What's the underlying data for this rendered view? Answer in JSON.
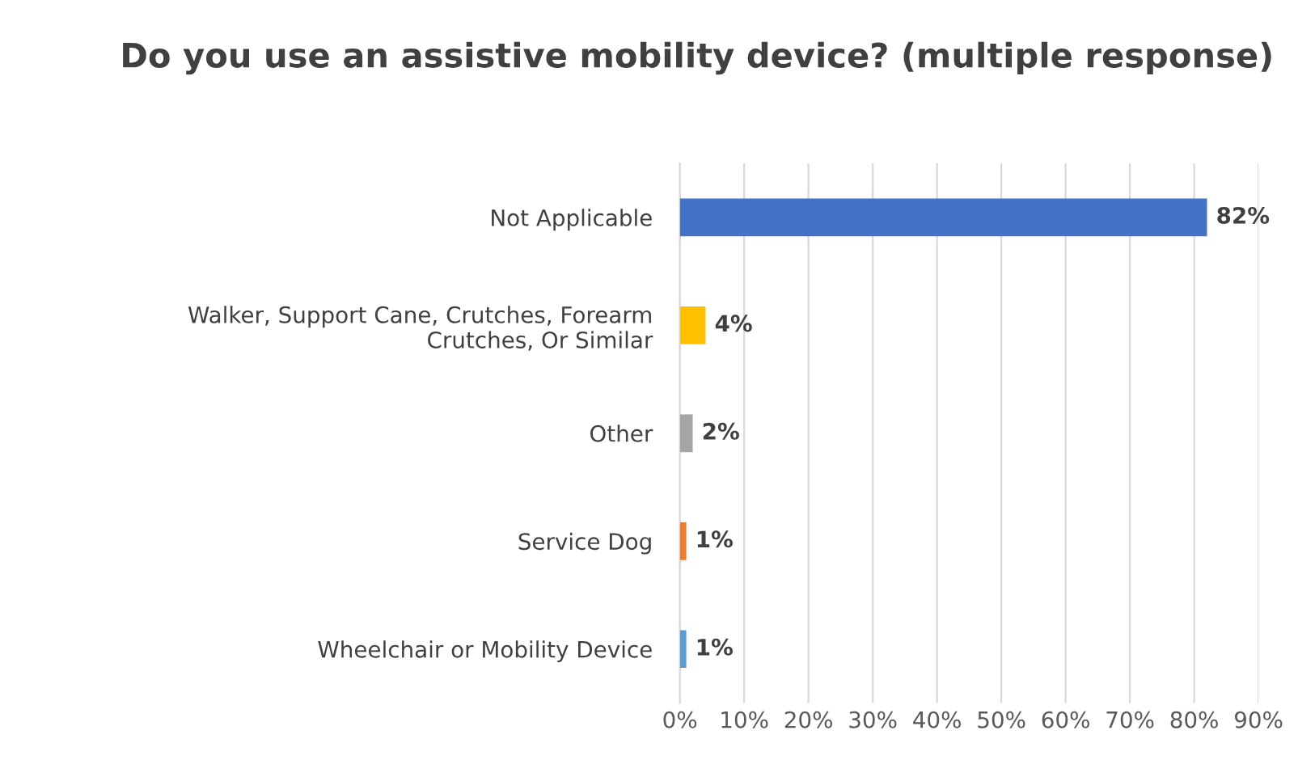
{
  "chart_data": {
    "type": "bar",
    "orientation": "horizontal",
    "title": "Do you use an assistive mobility device? (multiple response)",
    "categories": [
      "Not Applicable",
      "Walker, Support Cane, Crutches, Forearm Crutches, Or Similar",
      "Other",
      "Service Dog",
      "Wheelchair or Mobility Device"
    ],
    "values": [
      82,
      4,
      2,
      1,
      1
    ],
    "colors": [
      "#4472c4",
      "#ffc000",
      "#a5a5a5",
      "#ed7d31",
      "#5b9bd5"
    ],
    "value_labels": [
      "82%",
      "4%",
      "2%",
      "1%",
      "1%"
    ],
    "xlim": [
      0,
      90
    ],
    "xticks": [
      {
        "value": 0,
        "label": "0%"
      },
      {
        "value": 10,
        "label": "10%"
      },
      {
        "value": 20,
        "label": "20%"
      },
      {
        "value": 30,
        "label": "30%"
      },
      {
        "value": 40,
        "label": "40%"
      },
      {
        "value": 50,
        "label": "50%"
      },
      {
        "value": 60,
        "label": "60%"
      },
      {
        "value": 70,
        "label": "70%"
      },
      {
        "value": 80,
        "label": "80%"
      },
      {
        "value": 90,
        "label": "90%"
      }
    ],
    "grid": "x"
  }
}
